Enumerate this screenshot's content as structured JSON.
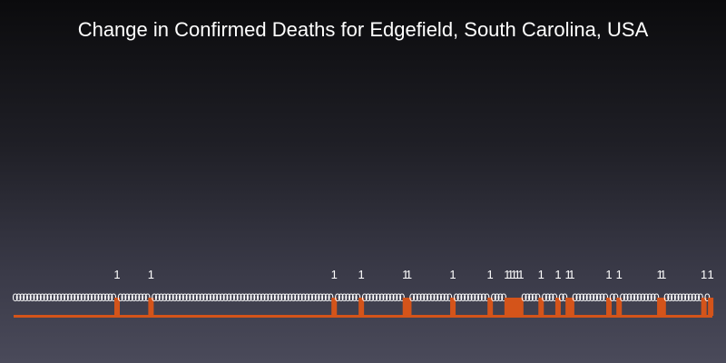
{
  "chart_data": {
    "type": "bar",
    "title": "Change in Confirmed Deaths for Edgefield, South Carolina, USA",
    "xlabel": "",
    "ylabel": "",
    "ylim": [
      0,
      1
    ],
    "grid": false,
    "legend": "none",
    "bar_color": "#d4541a",
    "label_color": "#ffffff",
    "values": [
      0,
      0,
      0,
      0,
      0,
      0,
      0,
      0,
      0,
      0,
      0,
      0,
      0,
      0,
      0,
      0,
      0,
      0,
      0,
      0,
      0,
      0,
      0,
      0,
      0,
      0,
      0,
      0,
      0,
      0,
      1,
      0,
      0,
      0,
      0,
      0,
      0,
      0,
      0,
      0,
      1,
      0,
      0,
      0,
      0,
      0,
      0,
      0,
      0,
      0,
      0,
      0,
      0,
      0,
      0,
      0,
      0,
      0,
      0,
      0,
      0,
      0,
      0,
      0,
      0,
      0,
      0,
      0,
      0,
      0,
      0,
      0,
      0,
      0,
      0,
      0,
      0,
      0,
      0,
      0,
      0,
      0,
      0,
      0,
      0,
      0,
      0,
      0,
      0,
      0,
      0,
      0,
      0,
      0,
      1,
      0,
      0,
      0,
      0,
      0,
      0,
      0,
      1,
      0,
      0,
      0,
      0,
      0,
      0,
      0,
      0,
      0,
      0,
      0,
      0,
      1,
      1,
      0,
      0,
      0,
      0,
      0,
      0,
      0,
      0,
      0,
      0,
      0,
      0,
      1,
      0,
      0,
      0,
      0,
      0,
      0,
      0,
      0,
      0,
      0,
      1,
      0,
      0,
      0,
      0,
      1,
      1,
      1,
      1,
      1,
      0,
      0,
      0,
      0,
      0,
      1,
      0,
      0,
      0,
      0,
      1,
      0,
      0,
      1,
      1,
      0,
      0,
      0,
      0,
      0,
      0,
      0,
      0,
      0,
      0,
      1,
      0,
      0,
      1,
      0,
      0,
      0,
      0,
      0,
      0,
      0,
      0,
      0,
      0,
      0,
      1,
      1,
      0,
      0,
      0,
      0,
      0,
      0,
      0,
      0,
      0,
      0,
      0,
      1,
      0,
      1
    ]
  }
}
